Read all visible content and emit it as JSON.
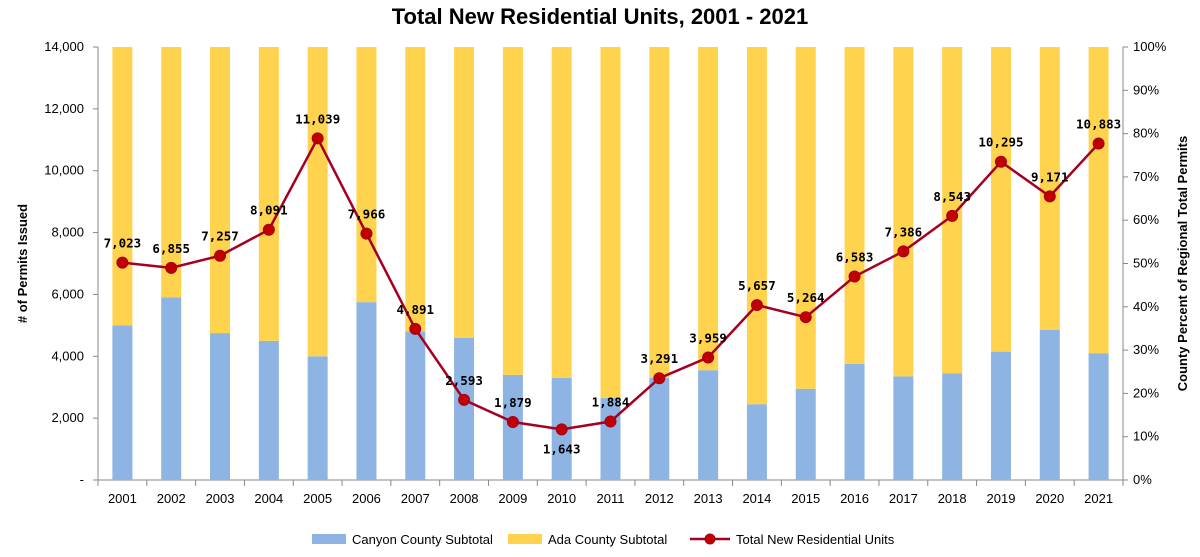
{
  "chart_data": {
    "type": "bar",
    "title": "Total New Residential Units, 2001 - 2021",
    "ylabel": "# of Permits Issued",
    "y2label": "County Percent of Regional Total Permits",
    "ylim": [
      0,
      14000
    ],
    "y2lim": [
      0,
      100
    ],
    "y_ticks": [
      "-",
      "2,000",
      "4,000",
      "6,000",
      "8,000",
      "10,000",
      "12,000",
      "14,000"
    ],
    "y2_ticks": [
      "0%",
      "10%",
      "20%",
      "30%",
      "40%",
      "50%",
      "60%",
      "70%",
      "80%",
      "90%",
      "100%"
    ],
    "categories": [
      "2001",
      "2002",
      "2003",
      "2004",
      "2005",
      "2006",
      "2007",
      "2008",
      "2009",
      "2010",
      "2011",
      "2012",
      "2013",
      "2014",
      "2015",
      "2016",
      "2017",
      "2018",
      "2019",
      "2020",
      "2021"
    ],
    "series": [
      {
        "name": "Canyon County Subtotal",
        "type": "stacked-bar",
        "axis": "left",
        "color": "#8DB4E2",
        "values": [
          5000,
          5900,
          4750,
          4500,
          4000,
          5750,
          4800,
          4600,
          3400,
          3300,
          2650,
          3300,
          3550,
          2450,
          2950,
          3750,
          3350,
          3450,
          4150,
          4850,
          4100
        ]
      },
      {
        "name": "Ada County Subtotal",
        "type": "stacked-bar",
        "axis": "left",
        "color": "#FFD34E",
        "values": [
          9000,
          8100,
          9250,
          9500,
          10000,
          8250,
          9200,
          9400,
          10600,
          10700,
          11350,
          10700,
          10450,
          11550,
          11050,
          10250,
          10650,
          10550,
          9850,
          9150,
          9900
        ]
      },
      {
        "name": "Total New Residential Units",
        "type": "line",
        "axis": "right",
        "color": "#A50021",
        "values": [
          50.2,
          49.0,
          51.8,
          57.8,
          78.9,
          56.9,
          34.9,
          18.5,
          13.4,
          11.7,
          13.5,
          23.5,
          28.3,
          40.4,
          37.6,
          47.0,
          52.8,
          61.0,
          73.5,
          65.5,
          77.7
        ],
        "labels": [
          "7,023",
          "6,855",
          "7,257",
          "8,091",
          "11,039",
          "7,966",
          "4,891",
          "2,593",
          "1,879",
          "1,643",
          "1,884",
          "3,291",
          "3,959",
          "5,657",
          "5,264",
          "6,583",
          "7,386",
          "8,543",
          "10,295",
          "9,171",
          "10,883"
        ]
      }
    ],
    "grid": false,
    "legend_position": "bottom"
  }
}
